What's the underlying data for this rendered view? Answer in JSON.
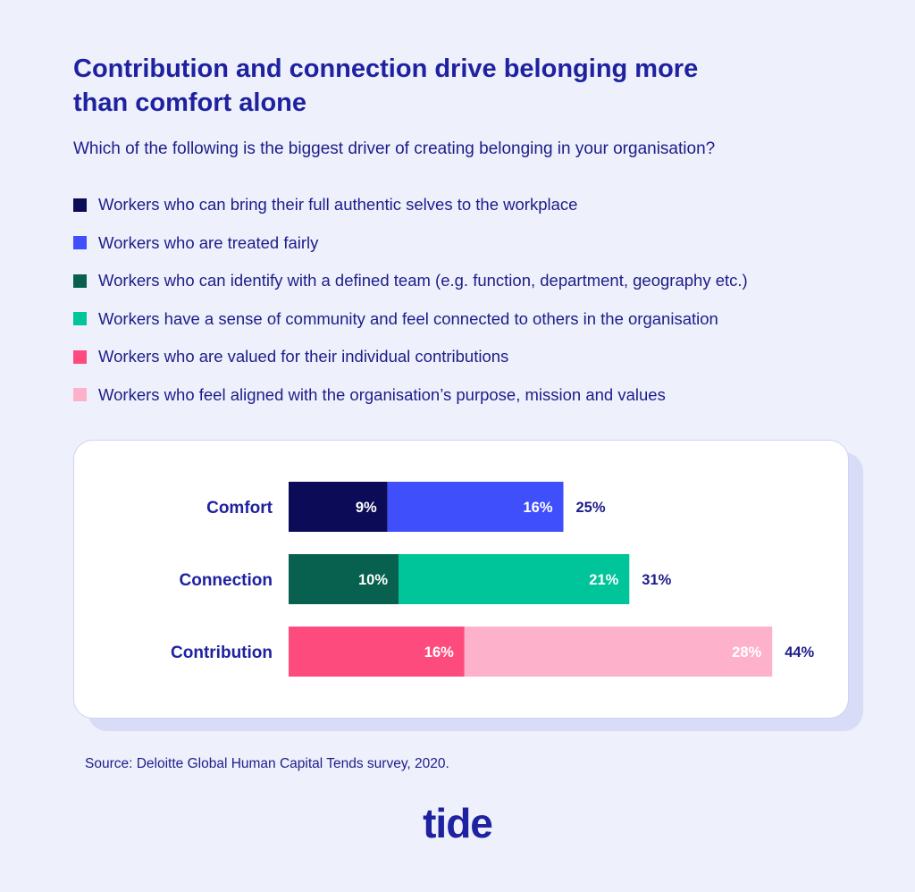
{
  "title": "Contribution and connection drive belonging more than comfort alone",
  "question": "Which of the following is the biggest driver of creating belonging in your organisation?",
  "legend": [
    {
      "label": "Workers who can bring their full authentic selves to the workplace",
      "color": "#0c0b57"
    },
    {
      "label": "Workers who are treated fairly",
      "color": "#3f4ffb"
    },
    {
      "label": "Workers who can identify with a defined team (e.g. function, department, geography etc.)",
      "color": "#07614e"
    },
    {
      "label": "Workers have a sense of community and feel connected to others in the organisation",
      "color": "#00c49a"
    },
    {
      "label": "Workers who are valued for their individual contributions",
      "color": "#fe4b7e"
    },
    {
      "label": "Workers who feel aligned with the organisation’s purpose, mission and values",
      "color": "#feb1cb"
    }
  ],
  "chart_data": {
    "type": "bar",
    "orientation": "horizontal",
    "stacked": true,
    "categories": [
      "Comfort",
      "Connection",
      "Contribution"
    ],
    "bars": [
      {
        "category": "Comfort",
        "total_label": "25%",
        "segments": [
          {
            "value": 9,
            "label": "9%",
            "color": "#0c0b57"
          },
          {
            "value": 16,
            "label": "16%",
            "color": "#3f4ffb"
          }
        ]
      },
      {
        "category": "Connection",
        "total_label": "31%",
        "segments": [
          {
            "value": 10,
            "label": "10%",
            "color": "#07614e"
          },
          {
            "value": 21,
            "label": "21%",
            "color": "#00c49a"
          }
        ]
      },
      {
        "category": "Contribution",
        "total_label": "44%",
        "segments": [
          {
            "value": 16,
            "label": "16%",
            "color": "#fe4b7e"
          },
          {
            "value": 28,
            "label": "28%",
            "color": "#feb1cb"
          }
        ]
      }
    ],
    "xlim": [
      0,
      44
    ],
    "grid": false
  },
  "source": "Source: Deloitte Global Human Capital Tends survey, 2020.",
  "logo_text": "tide"
}
